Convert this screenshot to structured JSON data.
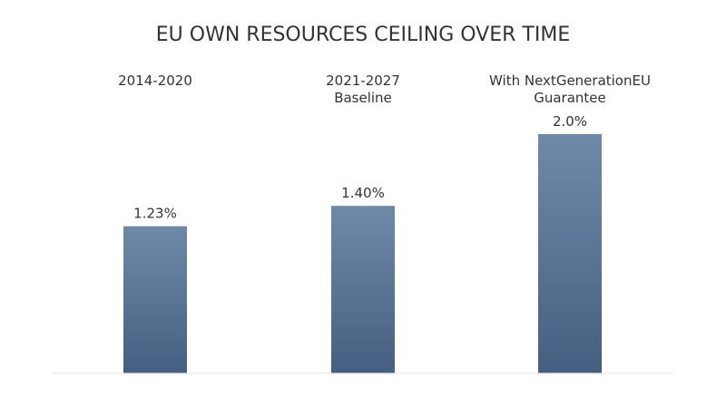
{
  "chart_data": {
    "type": "bar",
    "title": "EU OWN RESOURCES CEILING OVER TIME",
    "categories": [
      [
        "2014-2020"
      ],
      [
        "2021-2027",
        "Baseline"
      ],
      [
        "With NextGenerationEU",
        "Guarantee"
      ]
    ],
    "values": [
      1.23,
      1.4,
      2.0
    ],
    "value_labels": [
      "1.23%",
      "1.40%",
      "2.0%"
    ],
    "xlabel": "",
    "ylabel": "",
    "ylim": [
      0,
      2.0
    ],
    "grid": false,
    "legend": "none",
    "colors": {
      "bar_top": "#6f8aa8",
      "bar_bottom": "#455f82",
      "baseline": "#e3e3e3"
    }
  }
}
